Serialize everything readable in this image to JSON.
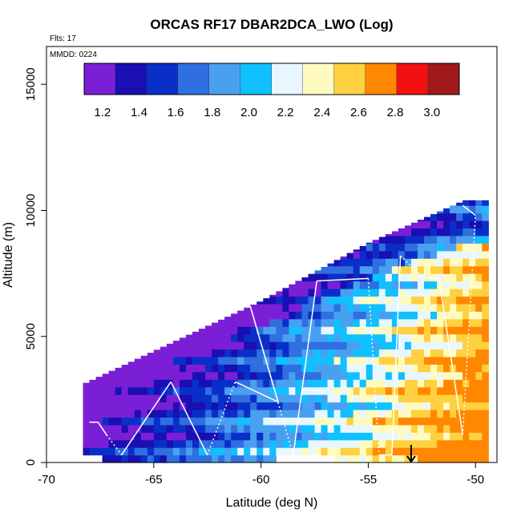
{
  "chart_data": {
    "type": "heatmap",
    "title": "ORCAS RF17 DBAR2DCA_LWO (Log)",
    "annotations": {
      "flights": "Flts: 17",
      "date": "MMDD: 0224"
    },
    "xlabel": "Latitude (deg N)",
    "ylabel": "Altitude (m)",
    "xlim": [
      -70,
      -49
    ],
    "ylim": [
      0,
      16500
    ],
    "x_ticks": [
      -70,
      -65,
      -60,
      -55,
      -50
    ],
    "x_tick_labels": [
      "-70",
      "-65",
      "-60",
      "-55",
      "-50"
    ],
    "y_ticks": [
      0,
      5000,
      10000,
      15000
    ],
    "y_tick_labels": [
      "0",
      "5000",
      "10000",
      "15000"
    ],
    "colorbar": {
      "position": "top inside plot",
      "range": [
        1.1,
        3.15
      ],
      "ticks": [
        1.2,
        1.4,
        1.6,
        1.8,
        2.0,
        2.2,
        2.4,
        2.6,
        2.8,
        3.0
      ],
      "tick_labels": [
        "1.2",
        "1.4",
        "1.6",
        "1.8",
        "2.0",
        "2.2",
        "2.4",
        "2.6",
        "2.8",
        "3.0"
      ],
      "bins": [
        1.1,
        1.3,
        1.5,
        1.7,
        1.9,
        2.1,
        2.3,
        2.5,
        2.7,
        2.9,
        3.15
      ],
      "colors": [
        "#7b1fd6",
        "#1a0fb2",
        "#0a2fc8",
        "#2f6fe0",
        "#4aa0f0",
        "#10c0ff",
        "#e8f7ff",
        "#fffbc0",
        "#ffd040",
        "#ff8800",
        "#f21010",
        "#a01a1a"
      ]
    },
    "domain": {
      "lat_range": [
        -68.3,
        -49.5
      ],
      "top_altitude_at_lat": [
        [
          -68.3,
          3100
        ],
        [
          -60,
          6400
        ],
        [
          -55,
          8700
        ],
        [
          -50.5,
          10400
        ]
      ]
    },
    "structure_notes": "Grid of latitude-altitude cells colored by log value; low values (blue) dominate at high altitude and south latitudes, high values (orange-red) dominate north of -55 below 9000 m.",
    "flight_track": {
      "points": [
        [
          -68,
          1600
        ],
        [
          -67.6,
          1600
        ],
        [
          -67.2,
          1100
        ],
        [
          -66.5,
          300
        ],
        [
          -64.2,
          3200
        ],
        [
          -62.5,
          300
        ],
        [
          -61.2,
          3200
        ],
        [
          -59.2,
          2400
        ],
        [
          -60.5,
          6200
        ],
        [
          -58.5,
          300
        ],
        [
          -57.4,
          7200
        ],
        [
          -55,
          7300
        ],
        [
          -54.5,
          300
        ],
        [
          -53.9,
          300
        ],
        [
          -53.5,
          8200
        ],
        [
          -52.4,
          7300
        ],
        [
          -51.7,
          7300
        ],
        [
          -50.6,
          1100
        ],
        [
          -50,
          9800
        ],
        [
          -50.6,
          10200
        ]
      ]
    },
    "marker": {
      "type": "down-arrow",
      "lat": -53,
      "altitude": 0
    }
  }
}
